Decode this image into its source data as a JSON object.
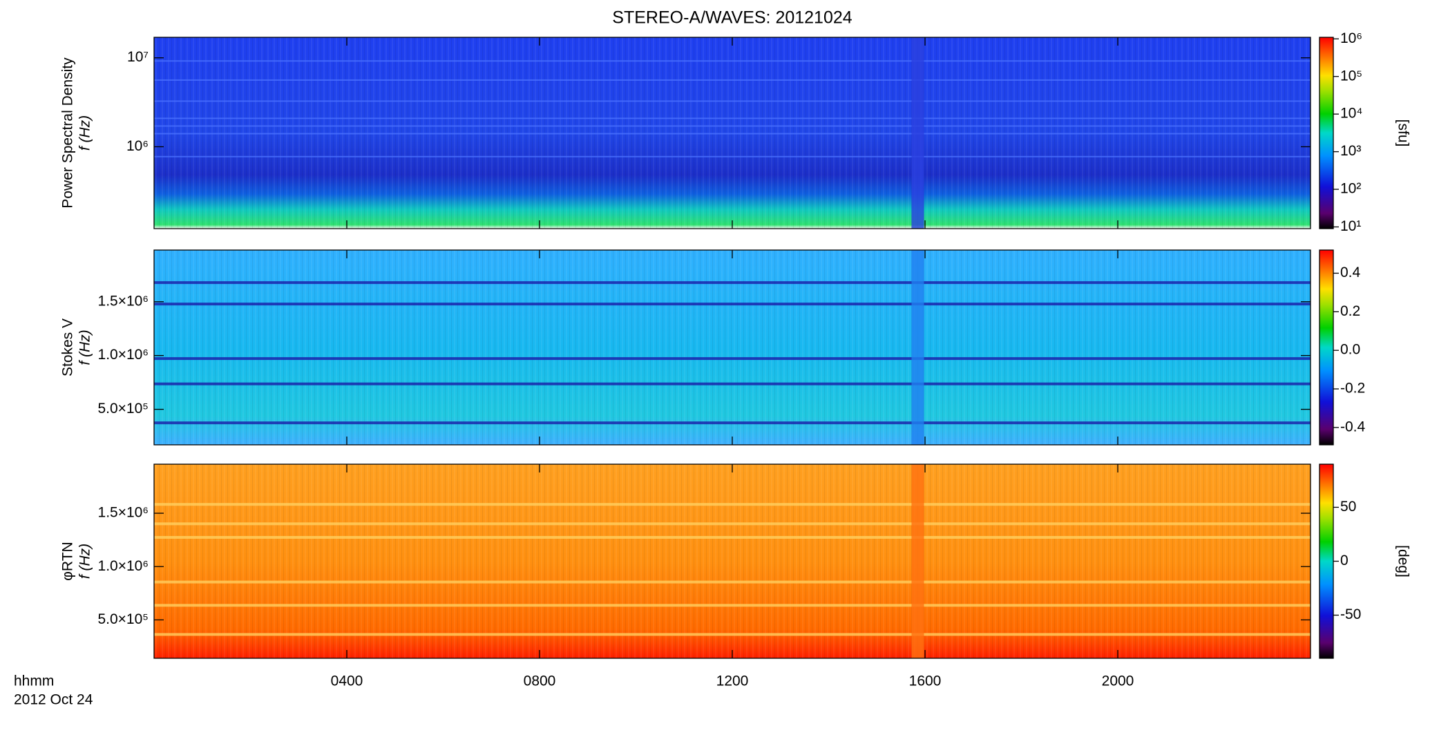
{
  "chart_data": [
    {
      "type": "spectrogram",
      "title": "STEREO-A/WAVES: 20121024",
      "ylabel": "Power Spectral Density",
      "ylabel2": "f (Hz)",
      "log_y": true,
      "ylim": [
        120000,
        17000000
      ],
      "yticks": [
        {
          "value": 1000000,
          "label": "10⁶"
        },
        {
          "value": 10000000,
          "label": "10⁷"
        }
      ],
      "log_c": true,
      "clim": [
        9,
        1100000
      ],
      "cticks": [
        {
          "value": 10,
          "label": "10¹"
        },
        {
          "value": 100,
          "label": "10²"
        },
        {
          "value": 1000,
          "label": "10³"
        },
        {
          "value": 10000,
          "label": "10⁴"
        },
        {
          "value": 100000,
          "label": "10⁵"
        },
        {
          "value": 1000000,
          "label": "10⁶"
        }
      ],
      "clabel": "[sfu]",
      "style": "psd"
    },
    {
      "type": "spectrogram",
      "ylabel": "Stokes V",
      "ylabel2": "f (Hz)",
      "log_y": false,
      "ylim": [
        170000,
        1980000
      ],
      "yticks": [
        {
          "value": 500000,
          "label": "5.0×10⁵"
        },
        {
          "value": 1000000,
          "label": "1.0×10⁶"
        },
        {
          "value": 1500000,
          "label": "1.5×10⁶"
        }
      ],
      "log_c": false,
      "clim": [
        -0.49,
        0.52
      ],
      "cticks": [
        -0.4,
        -0.2,
        {
          "value": 0,
          "label": "0.0"
        },
        0.2,
        0.4
      ],
      "style": "stokes"
    },
    {
      "type": "spectrogram",
      "ylabel": "φRTN",
      "ylabel2": "f (Hz)",
      "log_y": false,
      "ylim": [
        140000,
        1960000
      ],
      "yticks": [
        {
          "value": 500000,
          "label": "5.0×10⁵"
        },
        {
          "value": 1000000,
          "label": "1.0×10⁶"
        },
        {
          "value": 1500000,
          "label": "1.5×10⁶"
        }
      ],
      "log_c": false,
      "clim": [
        -90,
        90
      ],
      "cticks": [
        -50,
        0,
        50
      ],
      "clabel": "[deg]",
      "style": "phase",
      "xlim": [
        0,
        24
      ],
      "xticks": [
        {
          "value": 4,
          "label": "0400"
        },
        {
          "value": 8,
          "label": "0800"
        },
        {
          "value": 12,
          "label": "1200"
        },
        {
          "value": 16,
          "label": "1600"
        },
        {
          "value": 20,
          "label": "2000"
        }
      ],
      "xlabel": "hhmm",
      "date_label": "2012 Oct 24"
    }
  ]
}
